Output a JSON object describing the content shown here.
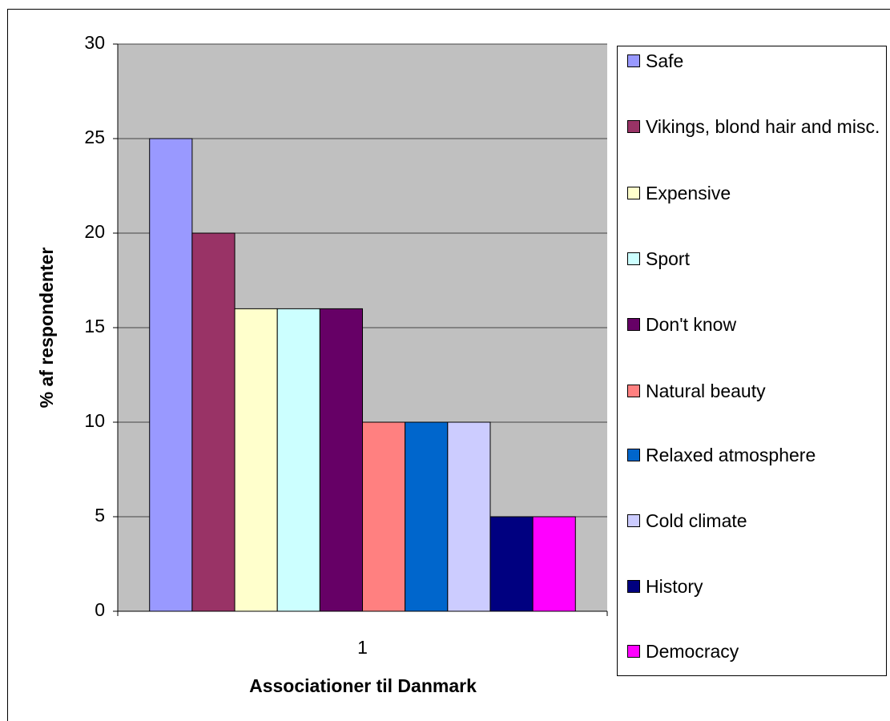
{
  "chart_data": {
    "type": "bar",
    "xlabel": "Associationer til Danmark",
    "ylabel": "% af respondenter",
    "categories": [
      "1"
    ],
    "series": [
      {
        "name": "Safe",
        "color": "#9999FF",
        "values": [
          25
        ]
      },
      {
        "name": "Vikings, blond hair and misc.",
        "color": "#993366",
        "values": [
          20
        ]
      },
      {
        "name": "Expensive",
        "color": "#FFFFCC",
        "values": [
          16
        ]
      },
      {
        "name": "Sport",
        "color": "#CCFFFF",
        "values": [
          16
        ]
      },
      {
        "name": "Don't know",
        "color": "#660066",
        "values": [
          16
        ]
      },
      {
        "name": "Natural beauty",
        "color": "#FF8080",
        "values": [
          10
        ]
      },
      {
        "name": "Relaxed atmosphere",
        "color": "#0066CC",
        "values": [
          10
        ]
      },
      {
        "name": "Cold climate",
        "color": "#CCCCFF",
        "values": [
          10
        ]
      },
      {
        "name": "History",
        "color": "#000080",
        "values": [
          5
        ]
      },
      {
        "name": "Democracy",
        "color": "#FF00FF",
        "values": [
          5
        ]
      }
    ],
    "ylim": [
      0,
      30
    ],
    "yticks": [
      0,
      5,
      10,
      15,
      20,
      25,
      30
    ],
    "grid": true,
    "legend": "right"
  }
}
